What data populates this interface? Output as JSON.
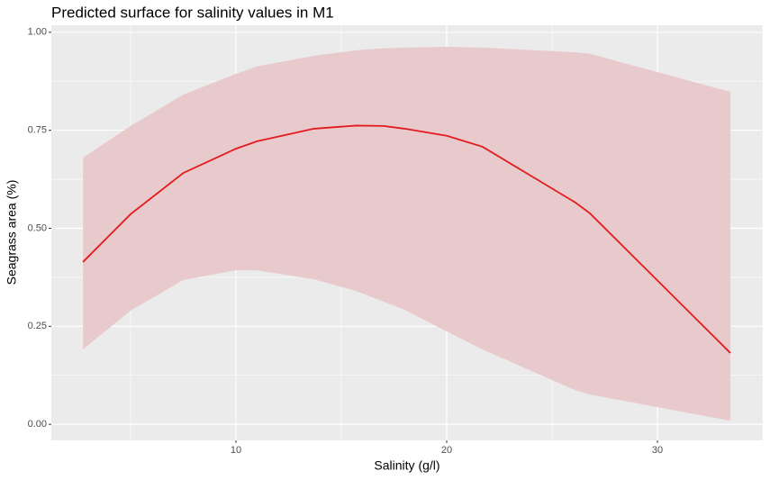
{
  "chart_data": {
    "type": "line",
    "title": "Predicted surface for salinity values in M1",
    "x_label": "Salinity (g/l)",
    "y_label": "Seagrass area (%)",
    "x": [
      2.74,
      5,
      7.5,
      10,
      11,
      13.7,
      15.7,
      17,
      18,
      20,
      21.7,
      26.1,
      26.8,
      33.46
    ],
    "values": [
      0.414,
      0.536,
      0.641,
      0.703,
      0.722,
      0.754,
      0.762,
      0.761,
      0.754,
      0.736,
      0.708,
      0.566,
      0.538,
      0.182
    ],
    "upper": [
      0.68,
      0.761,
      0.841,
      0.894,
      0.913,
      0.94,
      0.954,
      0.959,
      0.961,
      0.963,
      0.961,
      0.949,
      0.945,
      0.848
    ],
    "lower": [
      0.191,
      0.29,
      0.368,
      0.393,
      0.393,
      0.37,
      0.34,
      0.313,
      0.292,
      0.237,
      0.191,
      0.087,
      0.076,
      0.009
    ],
    "color": "#e31a1c",
    "ribbon_color": "#e9cacc",
    "xlim": [
      1.24,
      35.0
    ],
    "ylim": [
      -0.041,
      1.018
    ],
    "xticks": [
      10,
      20,
      30
    ],
    "yticks": [
      {
        "value": 0,
        "label": "0.00"
      },
      {
        "value": 0.25,
        "label": "0.25"
      },
      {
        "value": 0.5,
        "label": "0.50"
      },
      {
        "value": 0.75,
        "label": "0.75"
      },
      {
        "value": 1,
        "label": "1.00"
      }
    ],
    "x_minor_ticks": [
      5,
      15,
      25,
      35
    ],
    "y_minor_ticks": [
      0.125,
      0.375,
      0.625,
      0.875
    ],
    "grid": true
  }
}
